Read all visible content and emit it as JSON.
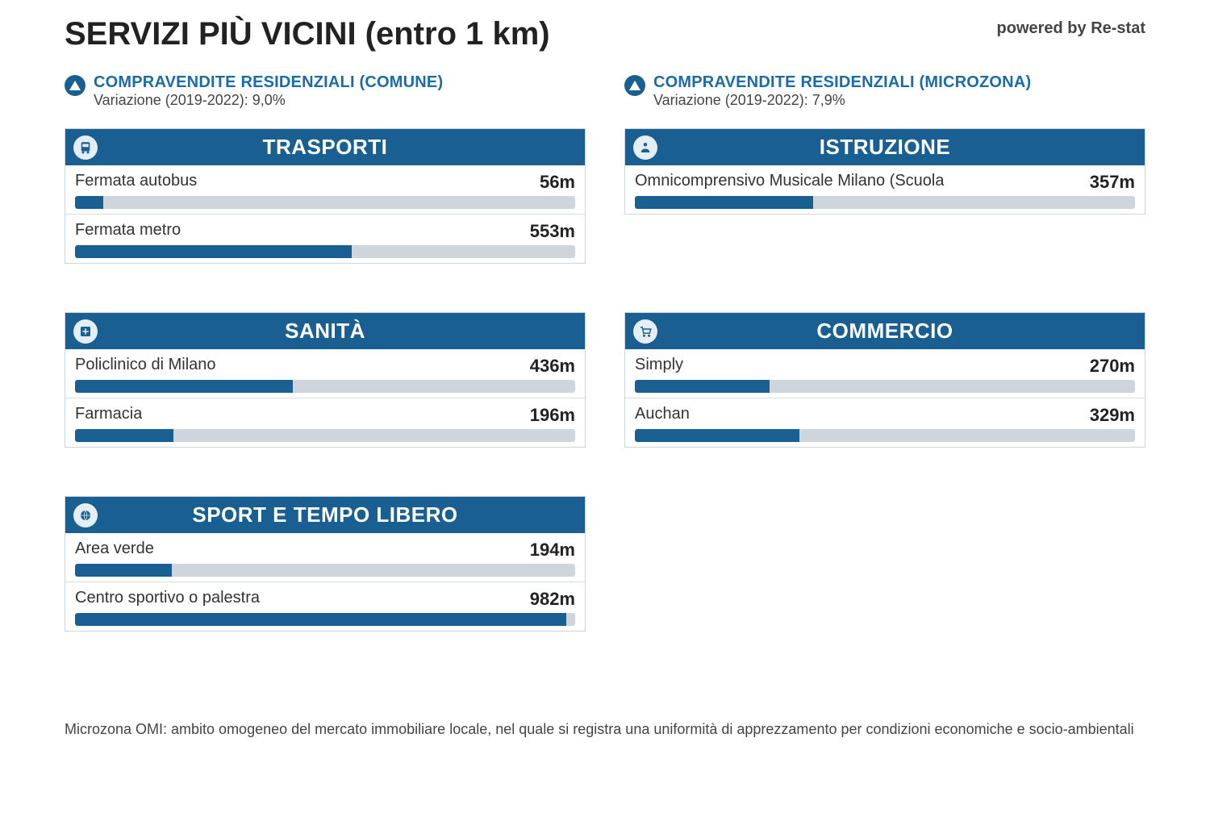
{
  "title": "SERVIZI PIÙ VICINI (entro 1 km)",
  "powered_by": "powered by Re-stat",
  "colors": {
    "primary": "#195f91",
    "track": "#cfd6db",
    "link": "#1a6ca8",
    "text": "#333333",
    "border": "#cbd5dc"
  },
  "max_distance_m": 1000,
  "stats": [
    {
      "title": "COMPRAVENDITE RESIDENZIALI (COMUNE)",
      "subtitle": "Variazione (2019-2022): 9,0%",
      "trend": "up"
    },
    {
      "title": "COMPRAVENDITE RESIDENZIALI (MICROZONA)",
      "subtitle": "Variazione (2019-2022): 7,9%",
      "trend": "up"
    }
  ],
  "panels": [
    {
      "id": "trasporti",
      "title": "TRASPORTI",
      "icon": "bus",
      "items": [
        {
          "label": "Fermata autobus",
          "distance_m": 56,
          "display": "56m"
        },
        {
          "label": "Fermata metro",
          "distance_m": 553,
          "display": "553m"
        }
      ]
    },
    {
      "id": "istruzione",
      "title": "ISTRUZIONE",
      "icon": "school",
      "items": [
        {
          "label": "Omnicomprensivo Musicale Milano (Scuola",
          "distance_m": 357,
          "display": "357m"
        }
      ]
    },
    {
      "id": "sanita",
      "title": "SANITÀ",
      "icon": "hospital",
      "items": [
        {
          "label": "Policlinico di Milano",
          "distance_m": 436,
          "display": "436m"
        },
        {
          "label": "Farmacia",
          "distance_m": 196,
          "display": "196m"
        }
      ]
    },
    {
      "id": "commercio",
      "title": "COMMERCIO",
      "icon": "cart",
      "items": [
        {
          "label": "Simply",
          "distance_m": 270,
          "display": "270m"
        },
        {
          "label": "Auchan",
          "distance_m": 329,
          "display": "329m"
        }
      ]
    },
    {
      "id": "sport",
      "title": "SPORT E TEMPO LIBERO",
      "icon": "ball",
      "items": [
        {
          "label": "Area verde",
          "distance_m": 194,
          "display": "194m"
        },
        {
          "label": "Centro sportivo o palestra",
          "distance_m": 982,
          "display": "982m"
        }
      ]
    }
  ],
  "footnote": "Microzona OMI: ambito omogeneo del mercato immobiliare locale, nel quale si registra una uniformità di apprezzamento per condizioni economiche e socio-ambientali"
}
